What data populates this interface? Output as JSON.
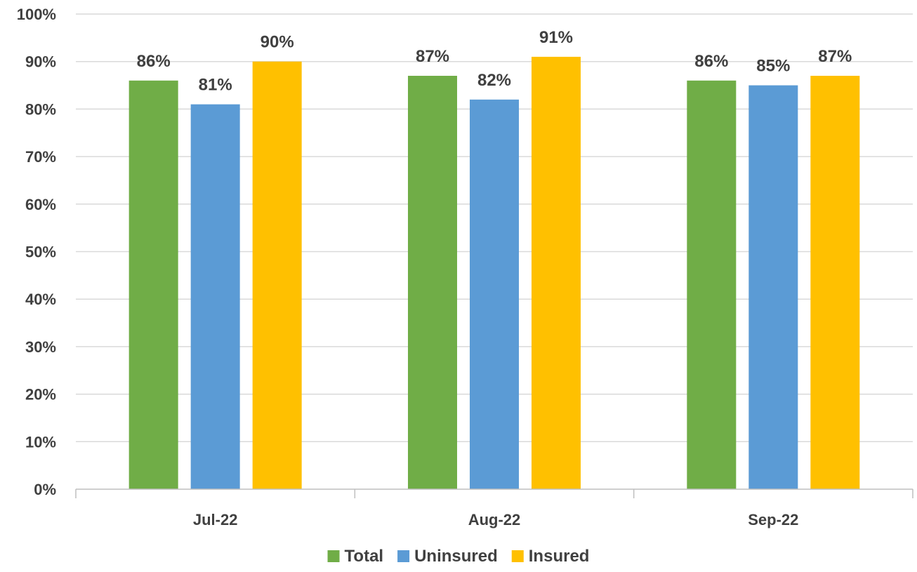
{
  "chart_data": {
    "type": "bar",
    "categories": [
      "Jul-22",
      "Aug-22",
      "Sep-22"
    ],
    "series": [
      {
        "name": "Total",
        "values": [
          86,
          87,
          86
        ],
        "color": "#70AD47",
        "labels": [
          "86%",
          "87%",
          "86%"
        ]
      },
      {
        "name": "Uninsured",
        "values": [
          81,
          82,
          85
        ],
        "color": "#5B9BD5",
        "labels": [
          "81%",
          "82%",
          "85%"
        ]
      },
      {
        "name": "Insured",
        "values": [
          90,
          91,
          87
        ],
        "color": "#FFC000",
        "labels": [
          "90%",
          "91%",
          "87%"
        ]
      }
    ],
    "y_ticks": [
      "0%",
      "10%",
      "20%",
      "30%",
      "40%",
      "50%",
      "60%",
      "70%",
      "80%",
      "90%",
      "100%"
    ],
    "ylim": [
      0,
      100
    ],
    "grid": true,
    "legend_position": "bottom",
    "gridline_color": "#D9D9D9",
    "axis_color": "#BFBFBF"
  }
}
